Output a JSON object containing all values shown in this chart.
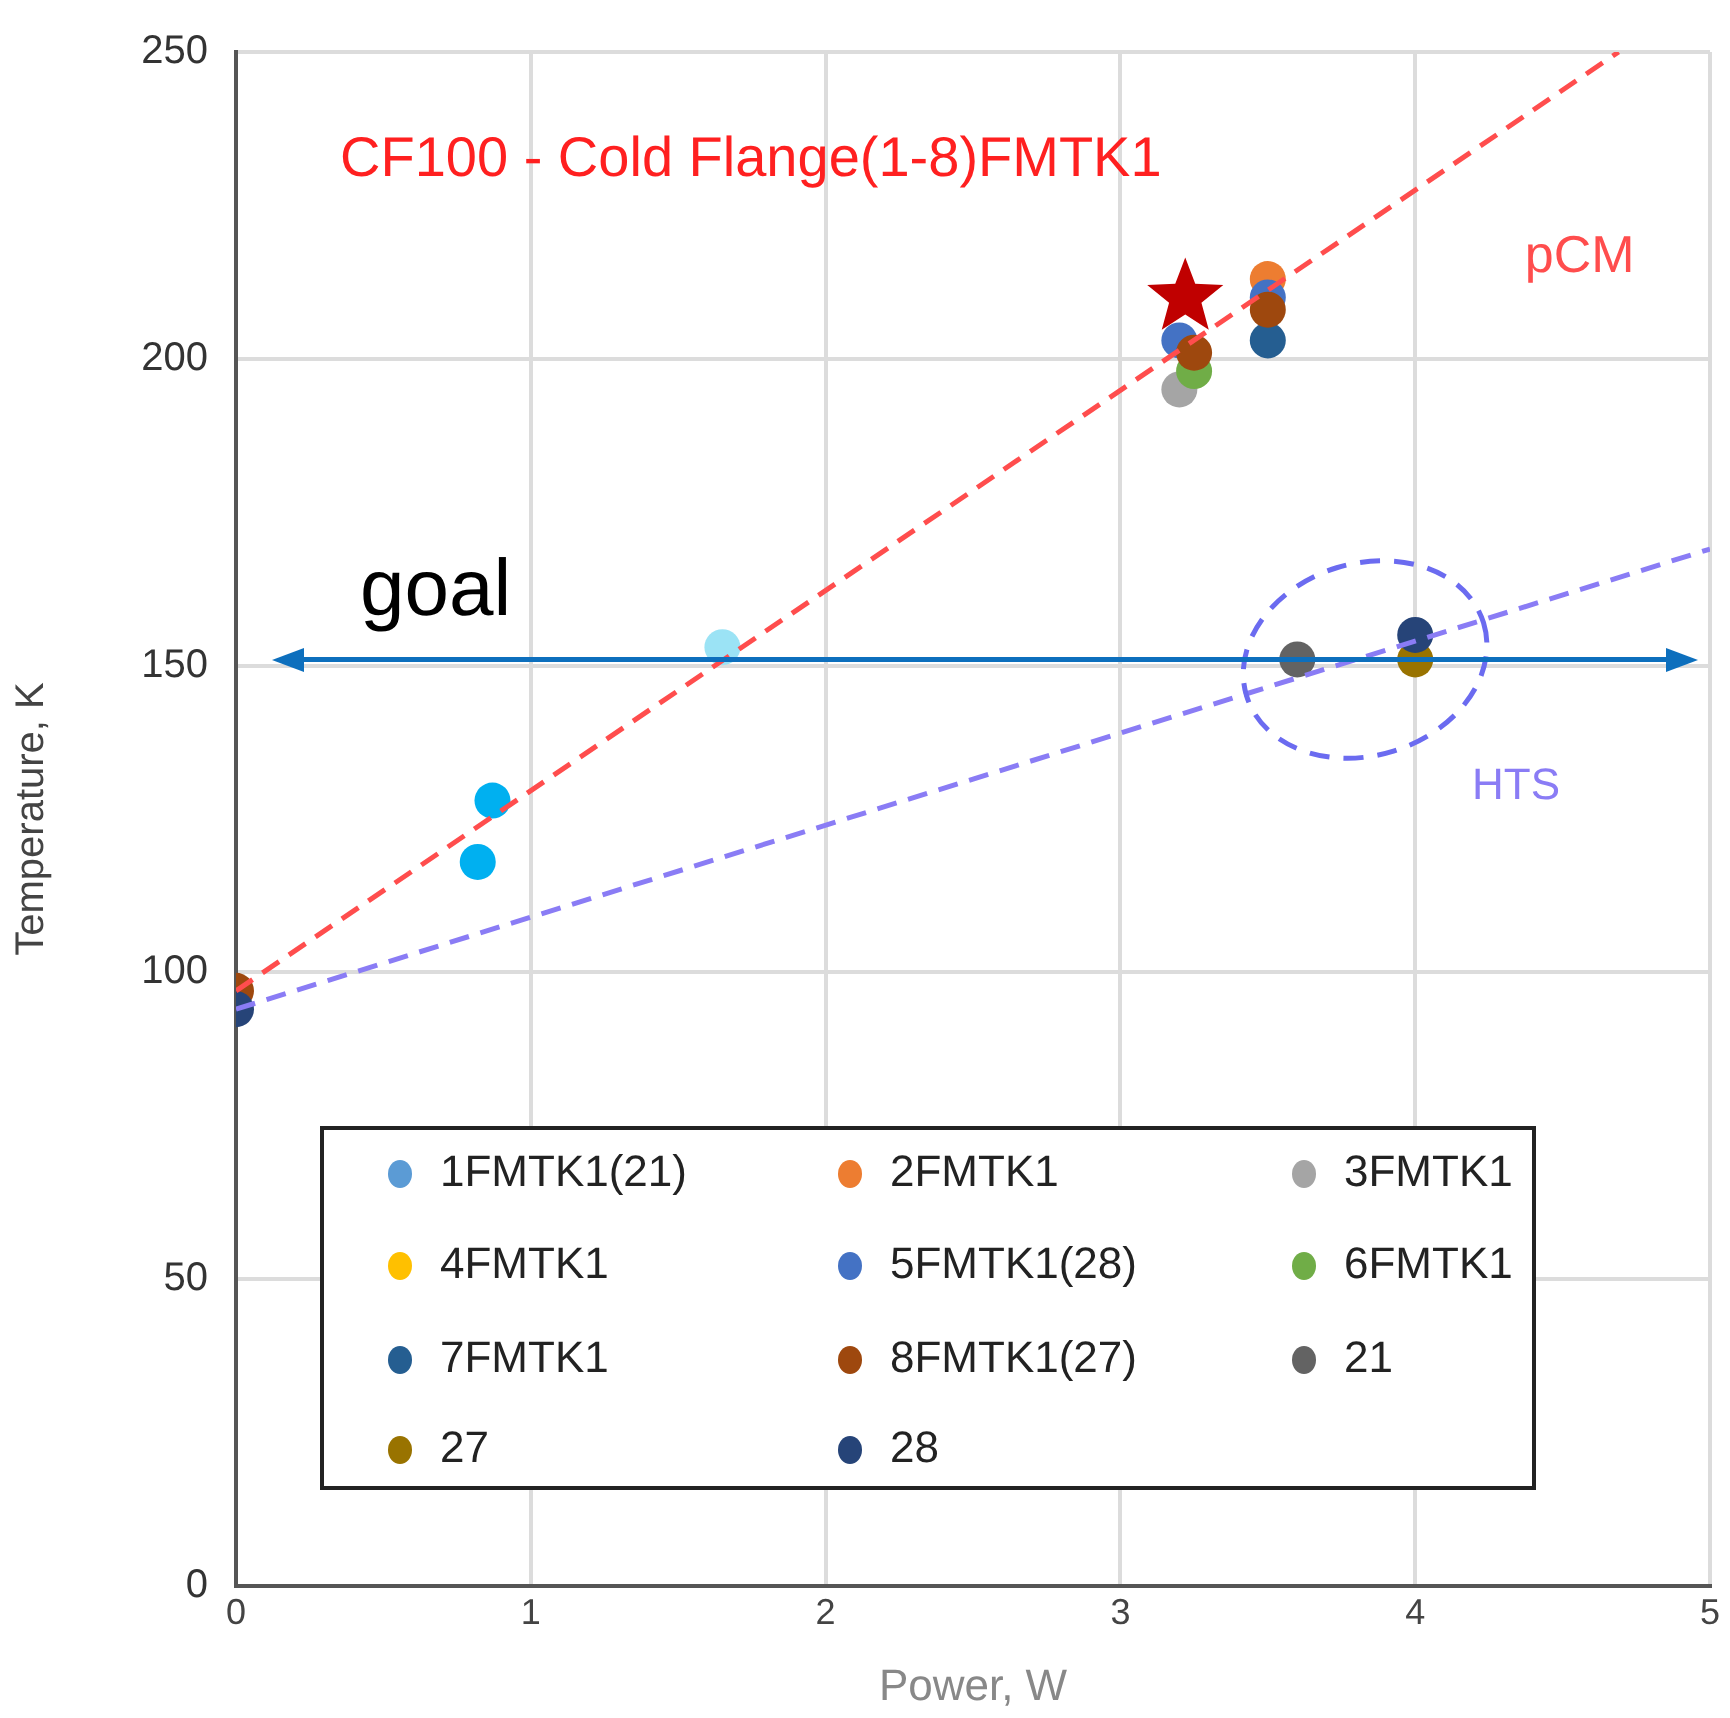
{
  "chart_data": {
    "type": "scatter",
    "title": "CF100 - Cold Flange(1-8)FMTK1",
    "xlabel": "Power, W",
    "ylabel": "Temperature, K",
    "xlim": [
      0,
      5
    ],
    "xticks": [
      0,
      1,
      2,
      3,
      4,
      5
    ],
    "ylim": [
      0,
      250
    ],
    "yticks": [
      0,
      50,
      100,
      150,
      200,
      250
    ],
    "grid": true,
    "legend": "bottom",
    "marker": "circle",
    "series": [
      {
        "name": "1FMTK1(21)",
        "color": "#5b9bd5"
      },
      {
        "name": "2FMTK1",
        "color": "#ed7d31",
        "x": [
          3.5
        ],
        "values": [
          213
        ]
      },
      {
        "name": "3FMTK1",
        "color": "#a5a5a5",
        "x": [
          3.2
        ],
        "values": [
          195
        ]
      },
      {
        "name": "4FMTK1",
        "color": "#ffc000"
      },
      {
        "name": "5FMTK1(28)",
        "color": "#4472c4",
        "x": [
          3.2,
          3.5
        ],
        "values": [
          203,
          210
        ]
      },
      {
        "name": "6FMTK1",
        "color": "#70ad47",
        "x": [
          3.25
        ],
        "values": [
          198
        ]
      },
      {
        "name": "7FMTK1",
        "color": "#255e91",
        "x": [
          3.5
        ],
        "values": [
          203
        ]
      },
      {
        "name": "8FMTK1(27)",
        "color": "#9e480e",
        "x": [
          0,
          3.25,
          3.5
        ],
        "values": [
          97,
          201,
          208
        ]
      },
      {
        "name": "21",
        "color": "#636363",
        "x": [
          3.6
        ],
        "values": [
          151
        ]
      },
      {
        "name": "27",
        "color": "#997300",
        "x": [
          4
        ],
        "values": [
          151
        ]
      },
      {
        "name": "28",
        "color": "#264478",
        "x": [
          0,
          4
        ],
        "values": [
          94,
          155
        ]
      },
      {
        "color": "#00b0f0",
        "x": [
          0.82,
          0.87
        ],
        "values": [
          118,
          128
        ]
      },
      {
        "color": "#9be3f5",
        "x": [
          1.65
        ],
        "values": [
          153
        ]
      },
      {
        "color": "#c00000",
        "marker": "star",
        "x": [
          3.22
        ],
        "values": [
          210
        ]
      },
      {
        "name": "pCM",
        "type": "line",
        "line_style": "dashed",
        "marker": "none",
        "color": "#ff4d4d",
        "x": [
          0,
          4.69
        ],
        "values": [
          97,
          250
        ]
      },
      {
        "name": "HTS",
        "type": "line",
        "line_style": "dashed",
        "marker": "none",
        "color": "#8a7cf5",
        "x": [
          0,
          5
        ],
        "values": [
          94,
          169
        ]
      }
    ],
    "ref_lines": [
      {
        "axis": "y",
        "value": 151,
        "label": "goal",
        "color": "#0d6fbd"
      }
    ]
  }
}
